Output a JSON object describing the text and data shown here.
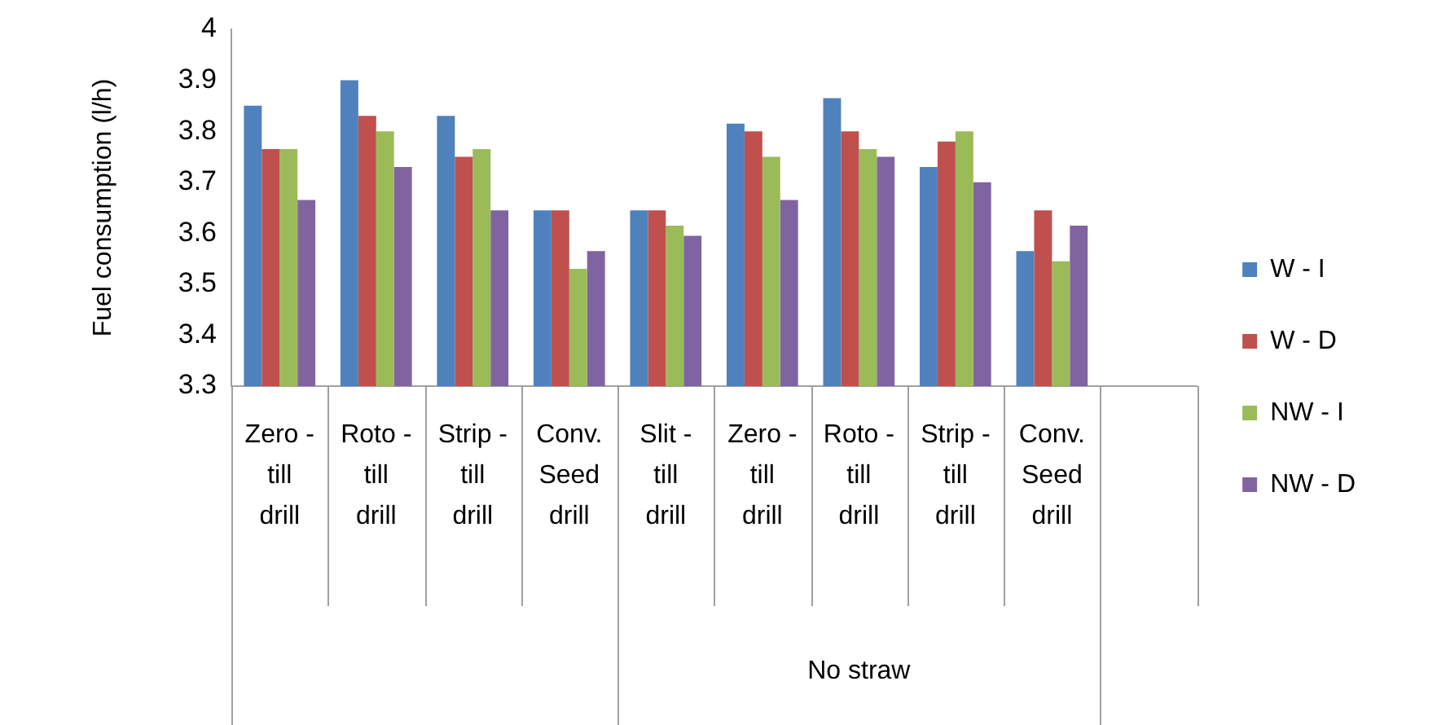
{
  "chart_data": {
    "type": "bar",
    "ylabel": "Fuel consumption (l/h)",
    "categories": [
      "Zero - till drill",
      "Roto - till drill",
      "Strip - till drill",
      "Conv. Seed drill",
      "Slit - till drill",
      "Zero - till drill",
      "Roto - till drill",
      "Strip - till drill",
      "Conv. Seed drill",
      null
    ],
    "series": [
      {
        "name": "W - I",
        "color": "#4f81bd",
        "values": [
          3.85,
          3.9,
          3.83,
          3.645,
          3.645,
          3.815,
          3.865,
          3.73,
          3.565,
          null
        ]
      },
      {
        "name": "W - D",
        "color": "#c0504d",
        "values": [
          3.765,
          3.83,
          3.75,
          3.645,
          3.645,
          3.8,
          3.8,
          3.78,
          3.645,
          null
        ]
      },
      {
        "name": "NW - I",
        "color": "#9bbb59",
        "values": [
          3.765,
          3.8,
          3.765,
          3.53,
          3.615,
          3.75,
          3.765,
          3.8,
          3.545,
          null
        ]
      },
      {
        "name": "NW - D",
        "color": "#8064a2",
        "values": [
          3.665,
          3.73,
          3.645,
          3.565,
          3.595,
          3.665,
          3.75,
          3.7,
          3.615,
          null
        ]
      }
    ],
    "ylim": [
      3.3,
      4
    ],
    "yticks": [
      3.3,
      3.4,
      3.5,
      3.6,
      3.7,
      3.8,
      3.9,
      4
    ],
    "grid": false,
    "legend": "right",
    "annotations": [
      "No straw"
    ]
  }
}
